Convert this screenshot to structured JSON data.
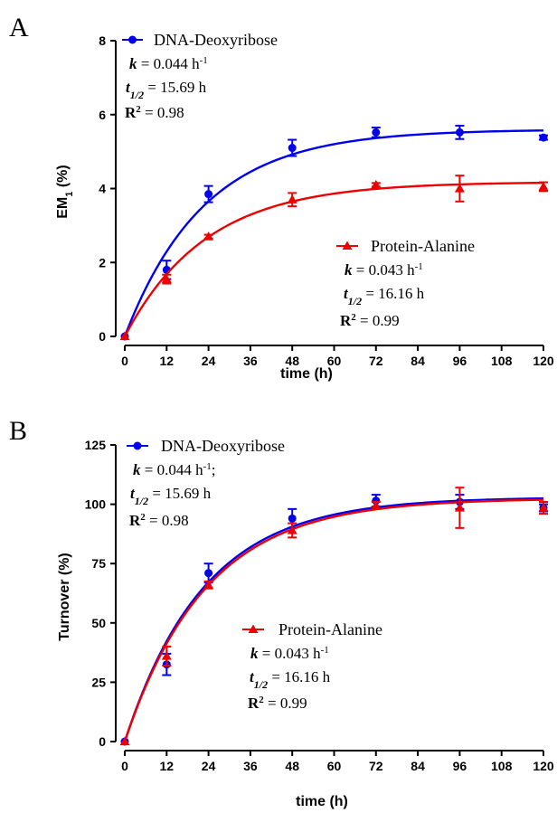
{
  "chart_data": [
    {
      "panel": "A",
      "type": "scatter",
      "ylabel": "EM",
      "ylabel_sub": "1",
      "ylabel_suffix": "(%)",
      "xlabel": "time (h)",
      "xlim": [
        0,
        120
      ],
      "ylim": [
        0,
        8
      ],
      "xticks": [
        0,
        12,
        24,
        36,
        48,
        60,
        72,
        84,
        96,
        108,
        120
      ],
      "yticks": [
        0,
        2,
        4,
        6,
        8
      ],
      "grid": false,
      "series": [
        {
          "name": "DNA-Deoxyribose",
          "color": "#0000ee",
          "marker": "circle",
          "legend_position": "top-left",
          "x": [
            0,
            12,
            24,
            48,
            72,
            96,
            120
          ],
          "y": [
            0,
            1.8,
            3.85,
            5.1,
            5.52,
            5.52,
            5.38
          ],
          "err": [
            0,
            0.25,
            0.22,
            0.22,
            0.13,
            0.18,
            0.06
          ],
          "fit": {
            "plateau": 5.6,
            "k": 0.044
          },
          "stats": {
            "k": "= 0.044 h",
            "k_sup": "-1",
            "t_half": "= 15.69 h",
            "r2": "= 0.98"
          }
        },
        {
          "name": "Protein-Alanine",
          "color": "#ee0000",
          "marker": "triangle",
          "legend_position": "middle-right",
          "x": [
            0,
            12,
            24,
            48,
            72,
            96,
            120
          ],
          "y": [
            0,
            1.55,
            2.7,
            3.7,
            4.1,
            4.0,
            4.05
          ],
          "err": [
            0,
            0.12,
            0.05,
            0.18,
            0.05,
            0.35,
            0.12
          ],
          "fit": {
            "plateau": 4.18,
            "k": 0.043
          },
          "stats": {
            "k": "= 0.043 h",
            "k_sup": "-1",
            "t_half": "= 16.16 h",
            "r2": "= 0.99"
          }
        }
      ]
    },
    {
      "panel": "B",
      "type": "scatter",
      "ylabel": "Turnover (%)",
      "xlabel": "time (h)",
      "xlim": [
        0,
        120
      ],
      "ylim": [
        0,
        125
      ],
      "xticks": [
        0,
        12,
        24,
        36,
        48,
        60,
        72,
        84,
        96,
        108,
        120
      ],
      "yticks": [
        0,
        25,
        50,
        75,
        100,
        125
      ],
      "grid": false,
      "series": [
        {
          "name": "DNA-Deoxyribose",
          "color": "#0000ee",
          "marker": "circle",
          "legend_position": "top-left",
          "x": [
            0,
            12,
            24,
            48,
            72,
            96,
            120
          ],
          "y": [
            0,
            32.5,
            71,
            94,
            101.5,
            101,
            98.5
          ],
          "err": [
            0,
            4.5,
            4,
            4,
            2.5,
            3,
            1.5
          ],
          "fit": {
            "plateau": 103,
            "k": 0.044
          },
          "stats": {
            "k": "= 0.044 h",
            "k_sup": "-1",
            "k_after": ";",
            "t_half": "= 15.69 h",
            "r2": "= 0.98"
          }
        },
        {
          "name": "Protein-Alanine",
          "color": "#ee0000",
          "marker": "triangle",
          "legend_position": "middle",
          "x": [
            0,
            12,
            24,
            48,
            72,
            96,
            120
          ],
          "y": [
            0,
            36,
            66,
            89,
            99.5,
            98.5,
            98.5
          ],
          "err": [
            0,
            4,
            1.5,
            3,
            1.5,
            8.5,
            2.5
          ],
          "fit": {
            "plateau": 102.5,
            "k": 0.043
          },
          "stats": {
            "k": "= 0.043 h",
            "k_sup": "-1",
            "t_half": "= 16.16 h",
            "r2": "= 0.99"
          }
        }
      ]
    }
  ],
  "labels": {
    "k_symbol": "k",
    "t_symbol": "t",
    "t_sub": "1/2",
    "r2_symbol": "R",
    "r2_sup": "2"
  }
}
